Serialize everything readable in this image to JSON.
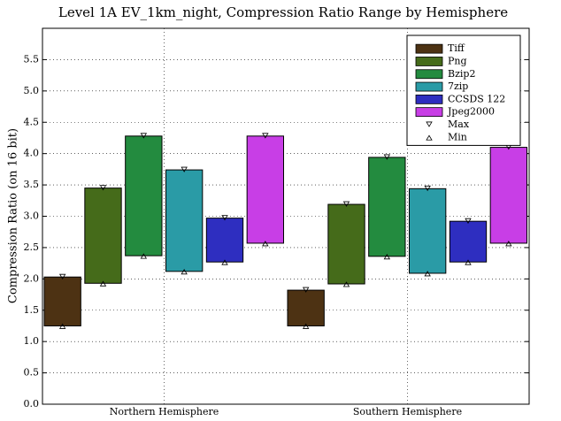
{
  "chart_data": {
    "type": "floating-bar",
    "title": "Level 1A EV_1km_night, Compression Ratio Range by Hemisphere",
    "y_label": "Compression Ratio (on 16 bit)",
    "categories": [
      "Northern Hemisphere",
      "Southern Hemisphere"
    ],
    "ylim": [
      0,
      6
    ],
    "yticks": [
      {
        "value": 0,
        "label": "0.0"
      },
      {
        "value": 0.5,
        "label": "0.5"
      },
      {
        "value": 1,
        "label": "1.0"
      },
      {
        "value": 1.5,
        "label": "1.5"
      },
      {
        "value": 2,
        "label": "2.0"
      },
      {
        "value": 2.5,
        "label": "2.5"
      },
      {
        "value": 3,
        "label": "3.0"
      },
      {
        "value": 3.5,
        "label": "3.5"
      },
      {
        "value": 4,
        "label": "4.0"
      },
      {
        "value": 4.5,
        "label": "4.5"
      },
      {
        "value": 5,
        "label": "5.0"
      },
      {
        "value": 5.5,
        "label": "5.5"
      }
    ],
    "grid": true,
    "legend_position": "upper right",
    "series": [
      {
        "name": "Tiff",
        "color": "#4d3213",
        "max": [
          2.03,
          1.82
        ],
        "min": [
          1.25,
          1.25
        ]
      },
      {
        "name": "Png",
        "color": "#456b1a",
        "max": [
          3.45,
          3.19
        ],
        "min": [
          1.93,
          1.92
        ]
      },
      {
        "name": "Bzip2",
        "color": "#238b3f",
        "max": [
          4.28,
          3.94
        ],
        "min": [
          2.37,
          2.36
        ]
      },
      {
        "name": "7zip",
        "color": "#2a9ba6",
        "max": [
          3.74,
          3.44
        ],
        "min": [
          2.12,
          2.09
        ]
      },
      {
        "name": "CCSDS 122",
        "color": "#2e2ec0",
        "max": [
          2.97,
          2.92
        ],
        "min": [
          2.27,
          2.27
        ]
      },
      {
        "name": "Jpeg2000",
        "color": "#c83ee6",
        "max": [
          4.28,
          4.1
        ],
        "min": [
          2.57,
          2.57
        ]
      }
    ],
    "markers": [
      {
        "name": "Max"
      },
      {
        "name": "Min"
      }
    ]
  }
}
